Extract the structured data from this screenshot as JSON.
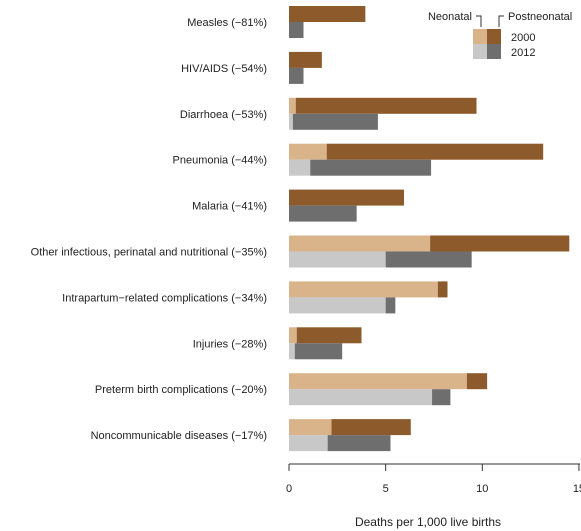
{
  "chart_data": {
    "type": "bar",
    "orientation": "horizontal",
    "xlabel": "Deaths per 1,000 live births",
    "xlim": [
      0,
      15
    ],
    "xticks": [
      "0",
      "5",
      "10",
      "15"
    ],
    "grid": false,
    "legend": {
      "placement": "top-right",
      "component_labels": [
        "Neonatal",
        "Postneonatal"
      ],
      "year_labels": [
        "2000",
        "2012"
      ]
    },
    "categories": [
      "Measles (−81%)",
      "HIV/AIDS (−54%)",
      "Diarrhoea (−53%)",
      "Pneumonia (−44%)",
      "Malaria (−41%)",
      "Other infectious, perinatal and nutritional (−35%)",
      "Intrapartum−related complications (−34%)",
      "Injuries (−28%)",
      "Preterm birth complications (−20%)",
      "Noncommunicable diseases (−17%)"
    ],
    "series": [
      {
        "name": "2000",
        "neonatal": [
          0.0,
          0.0,
          0.35,
          1.95,
          0.0,
          7.3,
          7.7,
          0.4,
          9.2,
          2.2
        ],
        "postneonatal": [
          3.95,
          1.7,
          9.35,
          11.2,
          5.95,
          7.2,
          0.5,
          3.35,
          1.05,
          4.1
        ]
      },
      {
        "name": "2012",
        "neonatal": [
          0.0,
          0.0,
          0.2,
          1.1,
          0.0,
          5.0,
          5.0,
          0.3,
          7.4,
          2.0
        ],
        "postneonatal": [
          0.75,
          0.75,
          4.4,
          6.25,
          3.5,
          4.45,
          0.5,
          2.45,
          0.95,
          3.25
        ]
      }
    ],
    "colors": {
      "neonatal_2000": "#d9b48a",
      "postneonatal_2000": "#8c5a2b",
      "neonatal_2012": "#c8c8c8",
      "postneonatal_2012": "#6e6e6e"
    }
  }
}
